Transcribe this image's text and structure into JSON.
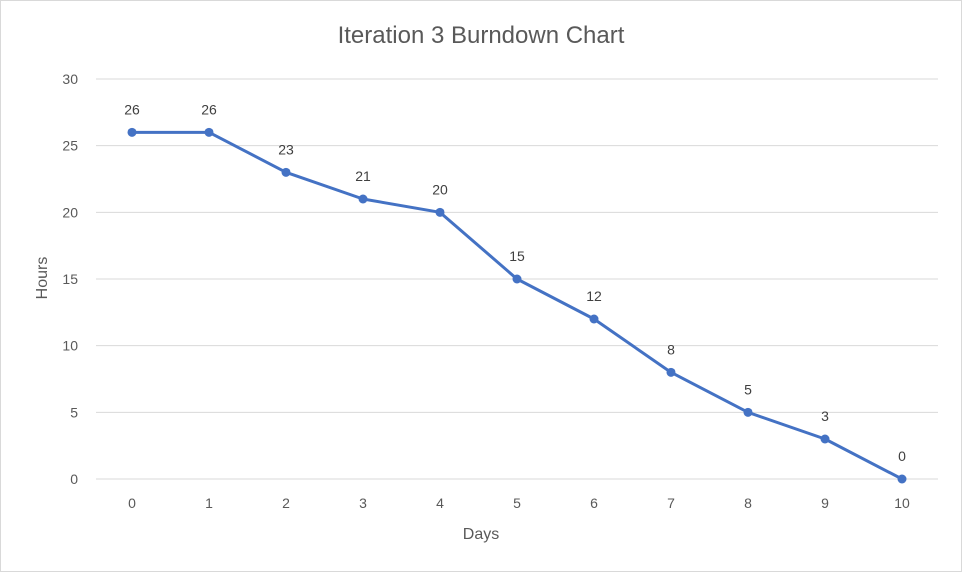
{
  "chart_data": {
    "type": "line",
    "title": "Iteration 3 Burndown Chart",
    "xlabel": "Days",
    "ylabel": "Hours",
    "x": [
      0,
      1,
      2,
      3,
      4,
      5,
      6,
      7,
      8,
      9,
      10
    ],
    "series": [
      {
        "values": [
          26,
          26,
          23,
          21,
          20,
          15,
          12,
          8,
          5,
          3,
          0
        ]
      }
    ],
    "data_labels": [
      "26",
      "26",
      "23",
      "21",
      "20",
      "15",
      "12",
      "8",
      "5",
      "3",
      "0"
    ],
    "ylim": [
      0,
      30
    ],
    "yticks": [
      0,
      5,
      10,
      15,
      20,
      25,
      30
    ],
    "xticks": [
      "0",
      "1",
      "2",
      "3",
      "4",
      "5",
      "6",
      "7",
      "8",
      "9",
      "10"
    ],
    "grid": "horizontal",
    "legend": "none",
    "colors": {
      "series": "#4472c4",
      "grid": "#d9d9d9",
      "text": "#595959"
    }
  }
}
